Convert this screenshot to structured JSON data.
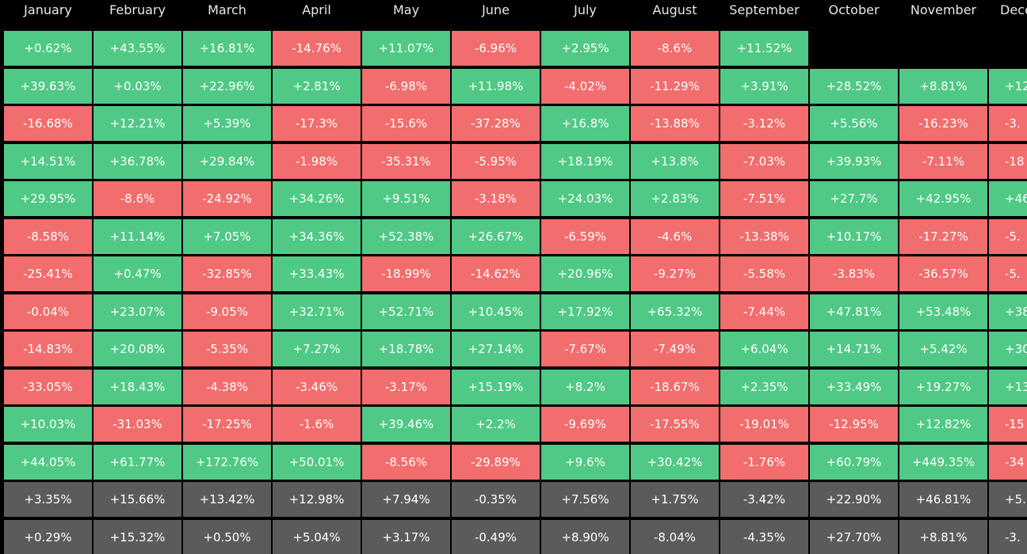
{
  "table": {
    "header": [
      "January",
      "February",
      "March",
      "April",
      "May",
      "June",
      "July",
      "August",
      "September",
      "October",
      "November",
      "Dece"
    ],
    "rows": [
      [
        "+0.62%",
        "+43.55%",
        "+16.81%",
        "-14.76%",
        "+11.07%",
        "-6.96%",
        "+2.95%",
        "-8.6%",
        "+11.52%"
      ],
      [
        "+39.63%",
        "+0.03%",
        "+22.96%",
        "+2.81%",
        "-6.98%",
        "+11.98%",
        "-4.02%",
        "-11.29%",
        "+3.91%",
        "+28.52%",
        "+8.81%",
        "+12"
      ],
      [
        "-16.68%",
        "+12.21%",
        "+5.39%",
        "-17.3%",
        "-15.6%",
        "-37.28%",
        "+16.8%",
        "-13.88%",
        "-3.12%",
        "+5.56%",
        "-16.23%",
        "-3."
      ],
      [
        "+14.51%",
        "+36.78%",
        "+29.84%",
        "-1.98%",
        "-35.31%",
        "-5.95%",
        "+18.19%",
        "+13.8%",
        "-7.03%",
        "+39.93%",
        "-7.11%",
        "-18"
      ],
      [
        "+29.95%",
        "-8.6%",
        "-24.92%",
        "+34.26%",
        "+9.51%",
        "-3.18%",
        "+24.03%",
        "+2.83%",
        "-7.51%",
        "+27.7%",
        "+42.95%",
        "+46"
      ],
      [
        "-8.58%",
        "+11.14%",
        "+7.05%",
        "+34.36%",
        "+52.38%",
        "+26.67%",
        "-6.59%",
        "-4.6%",
        "-13.38%",
        "+10.17%",
        "-17.27%",
        "-5."
      ],
      [
        "-25.41%",
        "+0.47%",
        "-32.85%",
        "+33.43%",
        "-18.99%",
        "-14.62%",
        "+20.96%",
        "-9.27%",
        "-5.58%",
        "-3.83%",
        "-36.57%",
        "-5."
      ],
      [
        "-0.04%",
        "+23.07%",
        "-9.05%",
        "+32.71%",
        "+52.71%",
        "+10.45%",
        "+17.92%",
        "+65.32%",
        "-7.44%",
        "+47.81%",
        "+53.48%",
        "+38"
      ],
      [
        "-14.83%",
        "+20.08%",
        "-5.35%",
        "+7.27%",
        "+18.78%",
        "+27.14%",
        "-7.67%",
        "-7.49%",
        "+6.04%",
        "+14.71%",
        "+5.42%",
        "+30"
      ],
      [
        "-33.05%",
        "+18.43%",
        "-4.38%",
        "-3.46%",
        "-3.17%",
        "+15.19%",
        "+8.2%",
        "-18.67%",
        "+2.35%",
        "+33.49%",
        "+19.27%",
        "+13"
      ],
      [
        "+10.03%",
        "-31.03%",
        "-17.25%",
        "-1.6%",
        "+39.46%",
        "+2.2%",
        "-9.69%",
        "-17.55%",
        "-19.01%",
        "-12.95%",
        "+12.82%",
        "-15"
      ],
      [
        "+44.05%",
        "+61.77%",
        "+172.76%",
        "+50.01%",
        "-8.56%",
        "-29.89%",
        "+9.6%",
        "+30.42%",
        "-1.76%",
        "+60.79%",
        "+449.35%",
        "-34"
      ]
    ],
    "summary_rows": [
      [
        "+3.35%",
        "+15.66%",
        "+13.42%",
        "+12.98%",
        "+7.94%",
        "-0.35%",
        "+7.56%",
        "+1.75%",
        "-3.42%",
        "+22.90%",
        "+46.81%",
        "+5."
      ],
      [
        "+0.29%",
        "+15.32%",
        "+0.50%",
        "+5.04%",
        "+3.17%",
        "-0.49%",
        "+8.90%",
        "-8.04%",
        "-4.35%",
        "+27.70%",
        "+8.81%",
        "-3."
      ]
    ]
  }
}
